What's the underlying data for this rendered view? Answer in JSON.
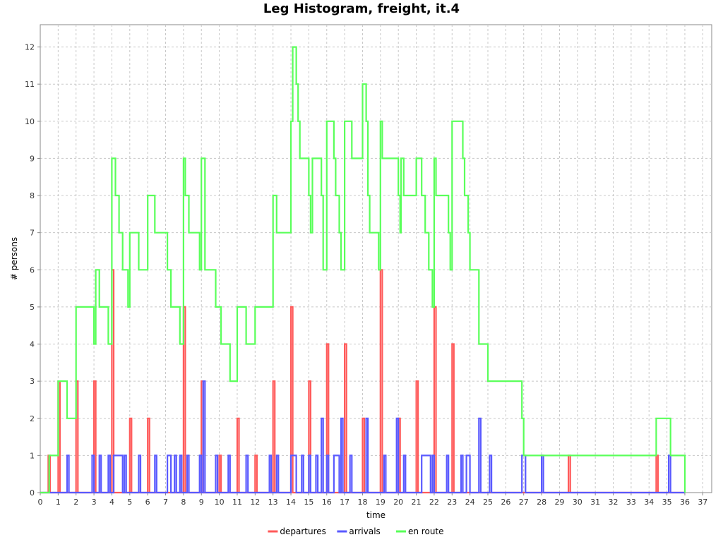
{
  "chart_data": {
    "type": "line",
    "title": "Leg Histogram, freight, it.4",
    "xlabel": "time",
    "ylabel": "# persons",
    "xlim": [
      0,
      37.5
    ],
    "ylim": [
      0,
      12.6
    ],
    "x_ticks": [
      0,
      1,
      2,
      3,
      4,
      5,
      6,
      7,
      8,
      9,
      10,
      11,
      12,
      13,
      14,
      15,
      16,
      17,
      18,
      19,
      20,
      21,
      22,
      23,
      24,
      25,
      26,
      27,
      28,
      29,
      30,
      31,
      32,
      33,
      34,
      35,
      36,
      37
    ],
    "y_ticks": [
      0,
      1,
      2,
      3,
      4,
      5,
      6,
      7,
      8,
      9,
      10,
      11,
      12
    ],
    "grid": true,
    "legend_position": "bottom",
    "series": [
      {
        "name": "departures",
        "color": "#ff5a5a",
        "style": "step",
        "points": [
          [
            0,
            0
          ],
          [
            0.45,
            1
          ],
          [
            0.55,
            0
          ],
          [
            1.0,
            3
          ],
          [
            1.1,
            0
          ],
          [
            2.0,
            3
          ],
          [
            2.1,
            0
          ],
          [
            3.0,
            3
          ],
          [
            3.1,
            0
          ],
          [
            4.0,
            6
          ],
          [
            4.1,
            0
          ],
          [
            5.0,
            2
          ],
          [
            5.1,
            0
          ],
          [
            6.0,
            2
          ],
          [
            6.1,
            0
          ],
          [
            8.0,
            5
          ],
          [
            8.1,
            0
          ],
          [
            9.0,
            3
          ],
          [
            9.1,
            0
          ],
          [
            10.0,
            1
          ],
          [
            10.1,
            0
          ],
          [
            11.0,
            2
          ],
          [
            11.1,
            0
          ],
          [
            12.0,
            1
          ],
          [
            12.1,
            0
          ],
          [
            13.0,
            3
          ],
          [
            13.1,
            0
          ],
          [
            14.0,
            5
          ],
          [
            14.1,
            0
          ],
          [
            15.0,
            3
          ],
          [
            15.1,
            0
          ],
          [
            16.0,
            4
          ],
          [
            16.1,
            0
          ],
          [
            17.0,
            4
          ],
          [
            17.1,
            0
          ],
          [
            18.0,
            2
          ],
          [
            18.1,
            0
          ],
          [
            19.0,
            6
          ],
          [
            19.1,
            0
          ],
          [
            20.0,
            2
          ],
          [
            20.1,
            0
          ],
          [
            21.0,
            3
          ],
          [
            21.1,
            0
          ],
          [
            22.0,
            5
          ],
          [
            22.1,
            0
          ],
          [
            23.0,
            4
          ],
          [
            23.1,
            0
          ],
          [
            29.5,
            1
          ],
          [
            29.6,
            0
          ],
          [
            34.4,
            1
          ],
          [
            34.5,
            0
          ],
          [
            36.0,
            0
          ]
        ]
      },
      {
        "name": "arrivals",
        "color": "#5a5aff",
        "style": "step",
        "points": [
          [
            0,
            0
          ],
          [
            1.5,
            1
          ],
          [
            1.6,
            0
          ],
          [
            2.9,
            1
          ],
          [
            3.0,
            0
          ],
          [
            3.3,
            1
          ],
          [
            3.4,
            0
          ],
          [
            3.8,
            1
          ],
          [
            3.9,
            0
          ],
          [
            4.1,
            1
          ],
          [
            4.6,
            0
          ],
          [
            4.7,
            1
          ],
          [
            4.8,
            0
          ],
          [
            5.5,
            1
          ],
          [
            5.6,
            0
          ],
          [
            6.4,
            1
          ],
          [
            6.5,
            0
          ],
          [
            7.1,
            1
          ],
          [
            7.3,
            0
          ],
          [
            7.5,
            1
          ],
          [
            7.6,
            0
          ],
          [
            7.8,
            1
          ],
          [
            7.9,
            0
          ],
          [
            8.2,
            1
          ],
          [
            8.3,
            0
          ],
          [
            8.9,
            1
          ],
          [
            9.0,
            0
          ],
          [
            9.1,
            3
          ],
          [
            9.2,
            0
          ],
          [
            9.8,
            1
          ],
          [
            9.9,
            0
          ],
          [
            10.5,
            1
          ],
          [
            10.6,
            0
          ],
          [
            11.5,
            1
          ],
          [
            11.6,
            0
          ],
          [
            12.8,
            1
          ],
          [
            12.9,
            0
          ],
          [
            13.2,
            1
          ],
          [
            13.3,
            0
          ],
          [
            14.0,
            1
          ],
          [
            14.3,
            0
          ],
          [
            14.6,
            1
          ],
          [
            14.7,
            0
          ],
          [
            15.0,
            1
          ],
          [
            15.1,
            0
          ],
          [
            15.4,
            1
          ],
          [
            15.5,
            0
          ],
          [
            15.7,
            2
          ],
          [
            15.8,
            0
          ],
          [
            16.0,
            1
          ],
          [
            16.1,
            0
          ],
          [
            16.4,
            1
          ],
          [
            16.7,
            0
          ],
          [
            16.8,
            2
          ],
          [
            16.9,
            0
          ],
          [
            17.3,
            1
          ],
          [
            17.4,
            0
          ],
          [
            18.2,
            2
          ],
          [
            18.3,
            0
          ],
          [
            19.2,
            1
          ],
          [
            19.3,
            0
          ],
          [
            19.9,
            2
          ],
          [
            20.0,
            0
          ],
          [
            20.3,
            1
          ],
          [
            20.4,
            0
          ],
          [
            21.3,
            1
          ],
          [
            21.8,
            0
          ],
          [
            21.9,
            1
          ],
          [
            22.0,
            0
          ],
          [
            22.7,
            1
          ],
          [
            22.8,
            0
          ],
          [
            23.5,
            1
          ],
          [
            23.6,
            0
          ],
          [
            23.8,
            1
          ],
          [
            24.0,
            0
          ],
          [
            24.5,
            2
          ],
          [
            24.6,
            0
          ],
          [
            25.1,
            1
          ],
          [
            25.2,
            0
          ],
          [
            26.9,
            1
          ],
          [
            27.1,
            0
          ],
          [
            28.0,
            1
          ],
          [
            28.1,
            0
          ],
          [
            35.1,
            1
          ],
          [
            35.2,
            0
          ],
          [
            36.0,
            0
          ]
        ]
      },
      {
        "name": "en route",
        "color": "#5aff5a",
        "style": "step",
        "points": [
          [
            0,
            0
          ],
          [
            0.5,
            1
          ],
          [
            1.0,
            3
          ],
          [
            1.5,
            2
          ],
          [
            2.0,
            5
          ],
          [
            3.0,
            4
          ],
          [
            3.1,
            6
          ],
          [
            3.3,
            5
          ],
          [
            3.8,
            4
          ],
          [
            4.0,
            9
          ],
          [
            4.2,
            8
          ],
          [
            4.4,
            7
          ],
          [
            4.6,
            6
          ],
          [
            4.9,
            5
          ],
          [
            5.0,
            7
          ],
          [
            5.5,
            6
          ],
          [
            6.0,
            8
          ],
          [
            6.4,
            7
          ],
          [
            7.1,
            6
          ],
          [
            7.3,
            5
          ],
          [
            7.8,
            4
          ],
          [
            8.0,
            9
          ],
          [
            8.1,
            8
          ],
          [
            8.3,
            7
          ],
          [
            8.9,
            6
          ],
          [
            9.0,
            9
          ],
          [
            9.2,
            6
          ],
          [
            9.8,
            5
          ],
          [
            10.1,
            4
          ],
          [
            10.6,
            3
          ],
          [
            11.0,
            5
          ],
          [
            11.5,
            4
          ],
          [
            12.0,
            5
          ],
          [
            13.0,
            8
          ],
          [
            13.2,
            7
          ],
          [
            14.0,
            10
          ],
          [
            14.1,
            12
          ],
          [
            14.3,
            11
          ],
          [
            14.4,
            10
          ],
          [
            14.5,
            9
          ],
          [
            15.0,
            8
          ],
          [
            15.1,
            7
          ],
          [
            15.2,
            9
          ],
          [
            15.5,
            9
          ],
          [
            15.7,
            8
          ],
          [
            15.8,
            6
          ],
          [
            16.0,
            10
          ],
          [
            16.4,
            9
          ],
          [
            16.5,
            8
          ],
          [
            16.7,
            7
          ],
          [
            16.8,
            6
          ],
          [
            17.0,
            10
          ],
          [
            17.4,
            9
          ],
          [
            18.0,
            11
          ],
          [
            18.2,
            10
          ],
          [
            18.3,
            8
          ],
          [
            18.4,
            7
          ],
          [
            18.9,
            6
          ],
          [
            19.0,
            10
          ],
          [
            19.1,
            9
          ],
          [
            20.0,
            8
          ],
          [
            20.1,
            7
          ],
          [
            20.15,
            9
          ],
          [
            20.3,
            8
          ],
          [
            21.0,
            9
          ],
          [
            21.3,
            8
          ],
          [
            21.5,
            7
          ],
          [
            21.7,
            6
          ],
          [
            21.9,
            5
          ],
          [
            22.0,
            9
          ],
          [
            22.1,
            8
          ],
          [
            22.8,
            7
          ],
          [
            22.9,
            6
          ],
          [
            23.0,
            10
          ],
          [
            23.6,
            9
          ],
          [
            23.7,
            8
          ],
          [
            23.9,
            7
          ],
          [
            24.0,
            6
          ],
          [
            24.5,
            4
          ],
          [
            25.0,
            3
          ],
          [
            26.9,
            2
          ],
          [
            27.0,
            1
          ],
          [
            28.0,
            1
          ],
          [
            34.4,
            2
          ],
          [
            35.2,
            1
          ],
          [
            36.0,
            0
          ],
          [
            36.0,
            0
          ]
        ]
      }
    ]
  }
}
